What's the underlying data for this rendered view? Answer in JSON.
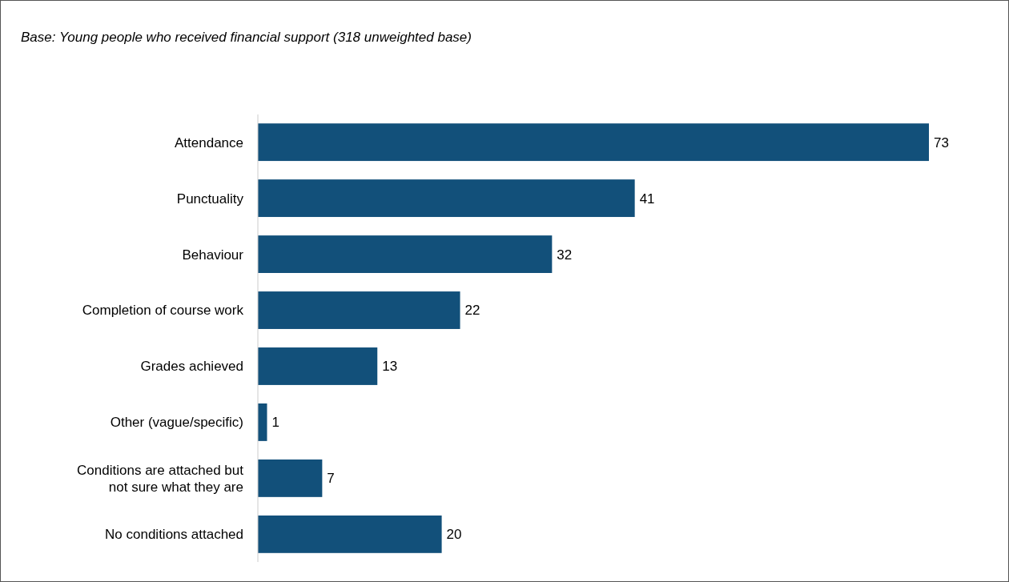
{
  "chart_data": {
    "type": "bar",
    "orientation": "horizontal",
    "subtitle": "Base: Young people who received financial support (318 unweighted base)",
    "categories": [
      "Attendance",
      "Punctuality",
      "Behaviour",
      "Completion of course work",
      "Grades achieved",
      "Other (vague/specific)",
      "Conditions are attached but not sure what they are",
      "No conditions attached"
    ],
    "values": [
      73,
      41,
      32,
      22,
      13,
      1,
      7,
      20
    ],
    "color": "#12507a",
    "data_labels": true,
    "tick_labels": "y"
  }
}
